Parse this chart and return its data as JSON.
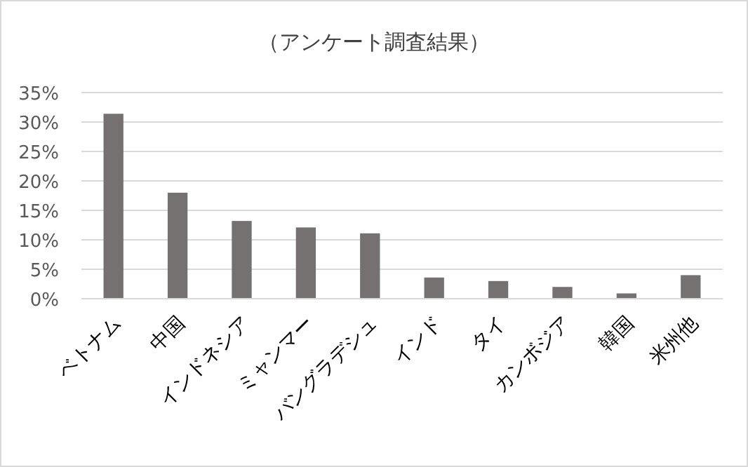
{
  "chart_data": {
    "type": "bar",
    "title": "（アンケート調査結果）",
    "categories": [
      "ベトナム",
      "中国",
      "インドネシア",
      "ミャンマー",
      "バングラデシュ",
      "インド",
      "タイ",
      "カンボジア",
      "韓国",
      "米州他"
    ],
    "values": [
      31.4,
      18.0,
      13.2,
      12.1,
      11.1,
      3.6,
      3.0,
      2.0,
      0.9,
      4.0
    ],
    "color": "#767171",
    "ylim": [
      0,
      35
    ],
    "yticks": [
      {
        "value": 0,
        "label": "0%"
      },
      {
        "value": 5,
        "label": "5%"
      },
      {
        "value": 10,
        "label": "10%"
      },
      {
        "value": 15,
        "label": "15%"
      },
      {
        "value": 20,
        "label": "20%"
      },
      {
        "value": 25,
        "label": "25%"
      },
      {
        "value": 30,
        "label": "30%"
      },
      {
        "value": 35,
        "label": "35%"
      }
    ],
    "grid": "y"
  }
}
